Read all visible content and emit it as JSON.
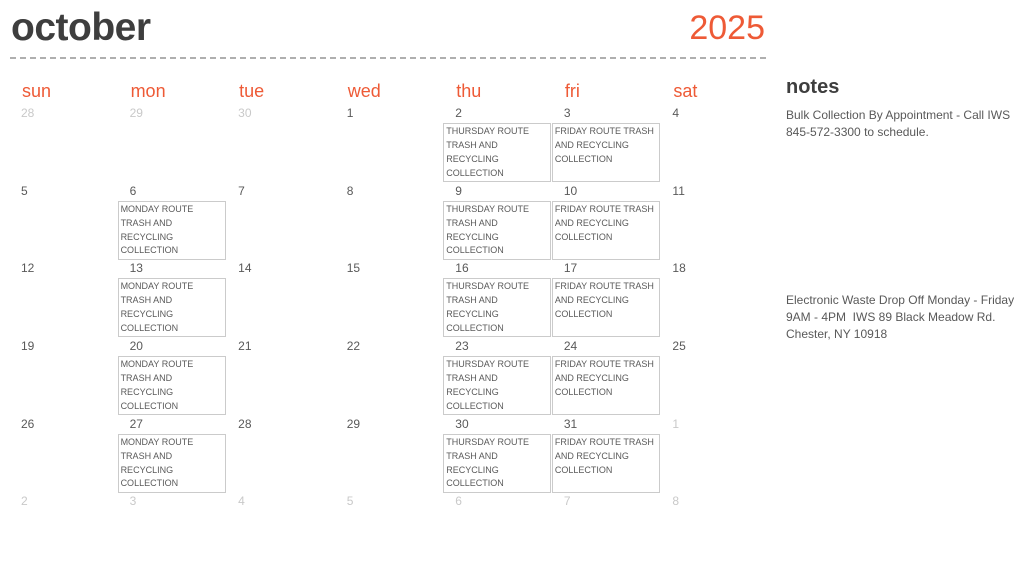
{
  "colors": {
    "accent": "#EE5A36",
    "title_text": "#3E3E3E",
    "date_text": "#595959",
    "muted_date_text": "#C9C9C9",
    "event_text": "#5A5A5A",
    "event_border": "#CBCBCB",
    "divider": "#AFAFAF",
    "background": "#FFFFFF"
  },
  "header": {
    "month": "october",
    "year": "2025"
  },
  "weekdays": [
    "sun",
    "mon",
    "tue",
    "wed",
    "thu",
    "fri",
    "sat"
  ],
  "event_types": {
    "monday": "MONDAY ROUTE TRASH AND RECYCLING COLLECTION",
    "thursday": "THURSDAY ROUTE TRASH AND RECYCLING COLLECTION",
    "friday": "FRIDAY ROUTE TRASH AND RECYCLING COLLECTION"
  },
  "weeks": [
    [
      {
        "day": "28",
        "muted": true
      },
      {
        "day": "29",
        "muted": true
      },
      {
        "day": "30",
        "muted": true
      },
      {
        "day": "1",
        "muted": false
      },
      {
        "day": "2",
        "muted": false,
        "event": "thursday"
      },
      {
        "day": "3",
        "muted": false,
        "event": "friday"
      },
      {
        "day": "4",
        "muted": false
      }
    ],
    [
      {
        "day": "5",
        "muted": false
      },
      {
        "day": "6",
        "muted": false,
        "event": "monday"
      },
      {
        "day": "7",
        "muted": false
      },
      {
        "day": "8",
        "muted": false
      },
      {
        "day": "9",
        "muted": false,
        "event": "thursday"
      },
      {
        "day": "10",
        "muted": false,
        "event": "friday"
      },
      {
        "day": "11",
        "muted": false
      }
    ],
    [
      {
        "day": "12",
        "muted": false
      },
      {
        "day": "13",
        "muted": false,
        "event": "monday"
      },
      {
        "day": "14",
        "muted": false
      },
      {
        "day": "15",
        "muted": false
      },
      {
        "day": "16",
        "muted": false,
        "event": "thursday"
      },
      {
        "day": "17",
        "muted": false,
        "event": "friday"
      },
      {
        "day": "18",
        "muted": false
      }
    ],
    [
      {
        "day": "19",
        "muted": false
      },
      {
        "day": "20",
        "muted": false,
        "event": "monday"
      },
      {
        "day": "21",
        "muted": false
      },
      {
        "day": "22",
        "muted": false
      },
      {
        "day": "23",
        "muted": false,
        "event": "thursday"
      },
      {
        "day": "24",
        "muted": false,
        "event": "friday"
      },
      {
        "day": "25",
        "muted": false
      }
    ],
    [
      {
        "day": "26",
        "muted": false
      },
      {
        "day": "27",
        "muted": false,
        "event": "monday"
      },
      {
        "day": "28",
        "muted": false
      },
      {
        "day": "29",
        "muted": false
      },
      {
        "day": "30",
        "muted": false,
        "event": "thursday"
      },
      {
        "day": "31",
        "muted": false,
        "event": "friday"
      },
      {
        "day": "1",
        "muted": true
      }
    ],
    [
      {
        "day": "2",
        "muted": true
      },
      {
        "day": "3",
        "muted": true
      },
      {
        "day": "4",
        "muted": true
      },
      {
        "day": "5",
        "muted": true
      },
      {
        "day": "6",
        "muted": true
      },
      {
        "day": "7",
        "muted": true
      },
      {
        "day": "8",
        "muted": true
      }
    ]
  ],
  "notes": {
    "title": "notes",
    "items": [
      {
        "lines": [
          "Bulk Collection By Appointment - Call IWS",
          "845-572-3300 to schedule."
        ]
      },
      {
        "lines": [
          "Electronic Waste Drop Off Monday - Friday",
          "9AM - 4PM  IWS 89 Black Meadow Rd.",
          "Chester, NY 10918"
        ]
      }
    ]
  }
}
